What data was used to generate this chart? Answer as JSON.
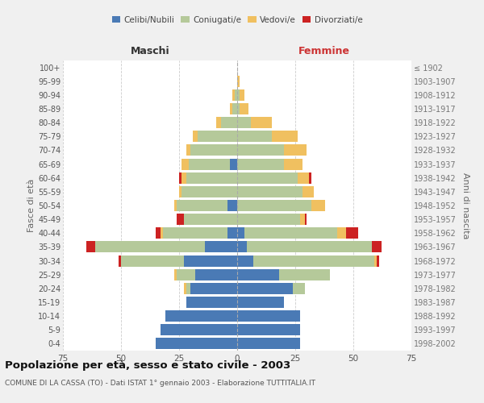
{
  "age_groups": [
    "0-4",
    "5-9",
    "10-14",
    "15-19",
    "20-24",
    "25-29",
    "30-34",
    "35-39",
    "40-44",
    "45-49",
    "50-54",
    "55-59",
    "60-64",
    "65-69",
    "70-74",
    "75-79",
    "80-84",
    "85-89",
    "90-94",
    "95-99",
    "100+"
  ],
  "birth_years": [
    "1998-2002",
    "1993-1997",
    "1988-1992",
    "1983-1987",
    "1978-1982",
    "1973-1977",
    "1968-1972",
    "1963-1967",
    "1958-1962",
    "1953-1957",
    "1948-1952",
    "1943-1947",
    "1938-1942",
    "1933-1937",
    "1928-1932",
    "1923-1927",
    "1918-1922",
    "1913-1917",
    "1908-1912",
    "1903-1907",
    "≤ 1902"
  ],
  "male": {
    "celibi": [
      35,
      33,
      31,
      22,
      20,
      18,
      23,
      14,
      4,
      0,
      4,
      0,
      0,
      3,
      0,
      0,
      0,
      0,
      0,
      0,
      0
    ],
    "coniugati": [
      0,
      0,
      0,
      0,
      2,
      8,
      27,
      47,
      28,
      23,
      22,
      24,
      22,
      18,
      20,
      17,
      7,
      2,
      1,
      0,
      0
    ],
    "vedovi": [
      0,
      0,
      0,
      0,
      1,
      1,
      0,
      0,
      1,
      0,
      1,
      1,
      2,
      3,
      2,
      2,
      2,
      1,
      1,
      0,
      0
    ],
    "divorziati": [
      0,
      0,
      0,
      0,
      0,
      0,
      1,
      4,
      2,
      3,
      0,
      0,
      1,
      0,
      0,
      0,
      0,
      0,
      0,
      0,
      0
    ]
  },
  "female": {
    "nubili": [
      27,
      27,
      27,
      20,
      24,
      18,
      7,
      4,
      3,
      0,
      0,
      0,
      0,
      0,
      0,
      0,
      0,
      0,
      0,
      0,
      0
    ],
    "coniugate": [
      0,
      0,
      0,
      0,
      5,
      22,
      52,
      54,
      40,
      27,
      32,
      28,
      26,
      20,
      20,
      15,
      6,
      1,
      1,
      0,
      0
    ],
    "vedove": [
      0,
      0,
      0,
      0,
      0,
      0,
      1,
      0,
      4,
      2,
      6,
      5,
      5,
      8,
      10,
      11,
      9,
      4,
      2,
      1,
      0
    ],
    "divorziate": [
      0,
      0,
      0,
      0,
      0,
      0,
      1,
      4,
      5,
      1,
      0,
      0,
      1,
      0,
      0,
      0,
      0,
      0,
      0,
      0,
      0
    ]
  },
  "color_celibi": "#4a7ab5",
  "color_coniugati": "#b5c99a",
  "color_vedovi": "#f0c060",
  "color_divorziati": "#cc2222",
  "title_main": "Popolazione per età, sesso e stato civile - 2003",
  "title_sub": "COMUNE DI LA CASSA (TO) - Dati ISTAT 1° gennaio 2003 - Elaborazione TUTTITALIA.IT",
  "xlabel_left": "Maschi",
  "xlabel_right": "Femmine",
  "ylabel_left": "Fasce di età",
  "ylabel_right": "Anni di nascita",
  "xlim": 75,
  "bg_color": "#f0f0f0",
  "plot_bg": "#ffffff"
}
